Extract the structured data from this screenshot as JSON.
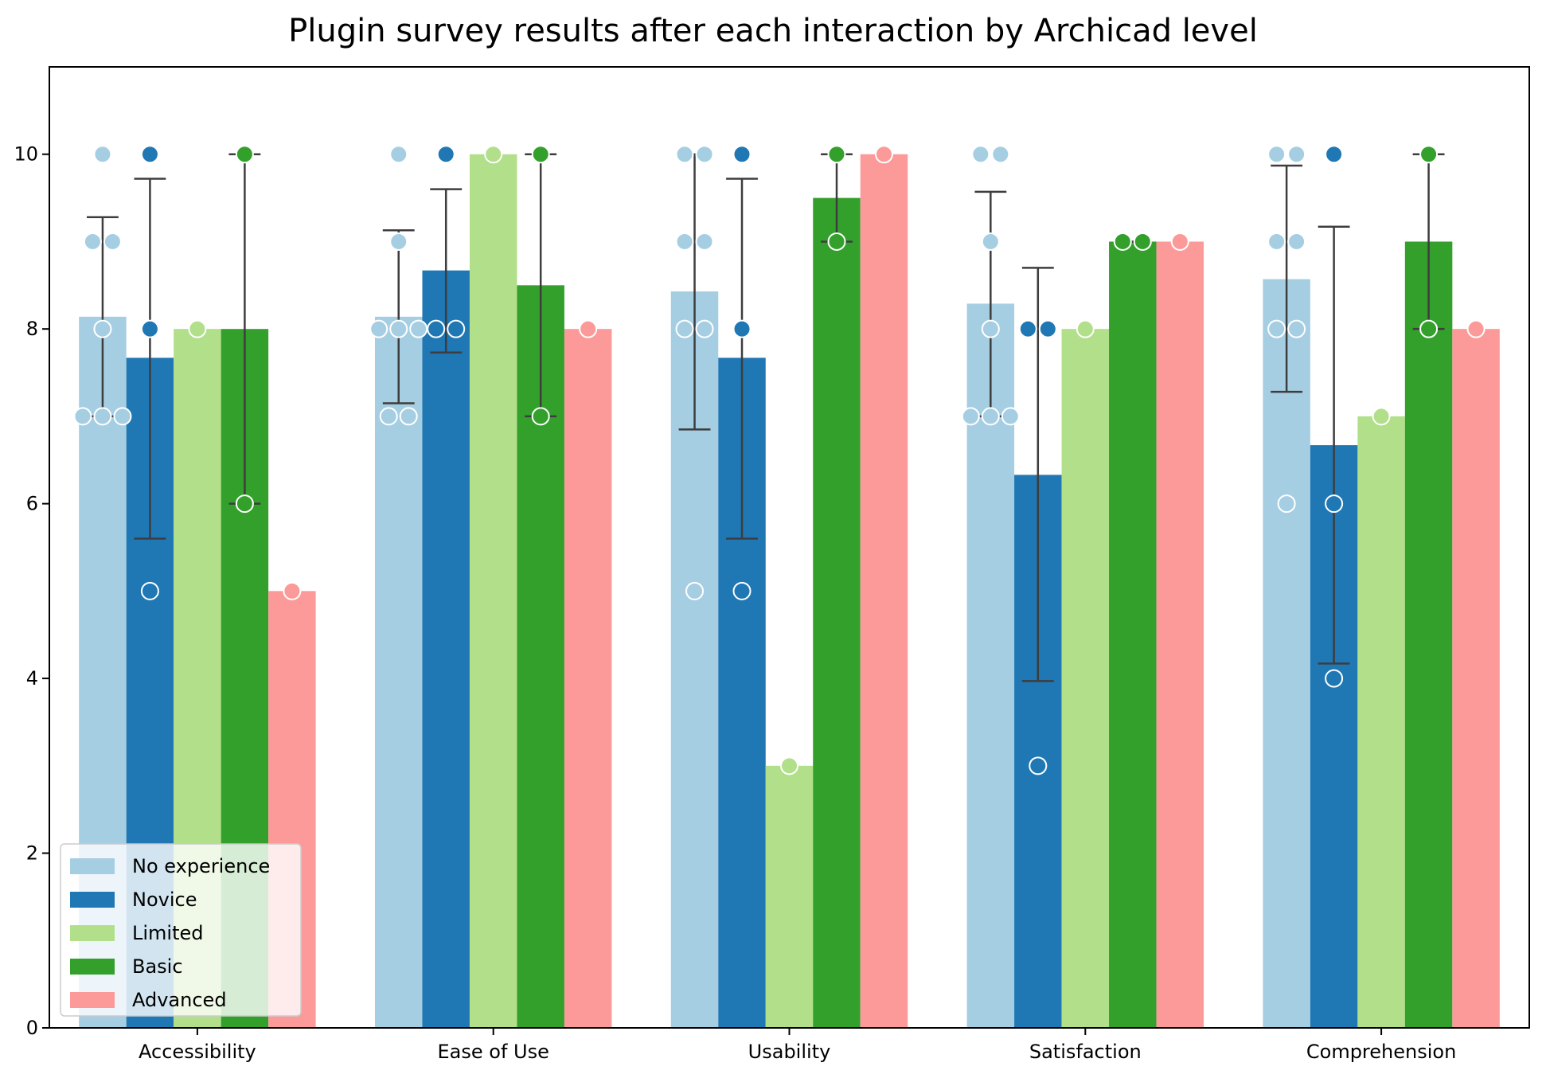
{
  "chart_data": {
    "type": "bar",
    "title": "Plugin survey results after each interaction by Archicad level",
    "xlabel": "",
    "ylabel": "",
    "ylim": [
      0,
      11
    ],
    "yticks": [
      0,
      2,
      4,
      6,
      8,
      10
    ],
    "grid": false,
    "legend_position": "bottom-left",
    "categories": [
      "Accessibility",
      "Ease of Use",
      "Usability",
      "Satisfaction",
      "Comprehension"
    ],
    "series": [
      {
        "name": "No experience",
        "color": "#a6cee3",
        "values": [
          8.14,
          8.14,
          8.43,
          8.29,
          8.57
        ],
        "ci": [
          [
            7.0,
            9.28
          ],
          [
            7.15,
            9.13
          ],
          [
            6.85,
            10.0
          ],
          [
            7.0,
            9.57
          ],
          [
            7.28,
            9.87
          ]
        ],
        "points": [
          [
            7,
            7,
            7,
            8,
            9,
            9,
            10
          ],
          [
            7,
            7,
            8,
            8,
            8,
            9,
            10
          ],
          [
            5,
            8,
            8,
            9,
            9,
            10,
            10
          ],
          [
            7,
            7,
            7,
            8,
            9,
            10,
            10
          ],
          [
            6,
            8,
            8,
            9,
            9,
            10,
            10
          ]
        ]
      },
      {
        "name": "Novice",
        "color": "#1f78b4",
        "values": [
          7.67,
          8.67,
          7.67,
          6.33,
          6.67
        ],
        "ci": [
          [
            5.6,
            9.72
          ],
          [
            7.73,
            9.6
          ],
          [
            5.6,
            9.72
          ],
          [
            3.97,
            8.7
          ],
          [
            4.17,
            9.17
          ]
        ],
        "points": [
          [
            5,
            8,
            10
          ],
          [
            8,
            8,
            10
          ],
          [
            5,
            8,
            10
          ],
          [
            3,
            8,
            8
          ],
          [
            4,
            6,
            10
          ]
        ]
      },
      {
        "name": "Limited",
        "color": "#b2df8a",
        "values": [
          8.0,
          10.0,
          3.0,
          8.0,
          7.0
        ],
        "ci": [
          null,
          null,
          null,
          null,
          null
        ],
        "points": [
          [
            8
          ],
          [
            10
          ],
          [
            3
          ],
          [
            8
          ],
          [
            7
          ]
        ]
      },
      {
        "name": "Basic",
        "color": "#33a02c",
        "values": [
          8.0,
          8.5,
          9.5,
          9.0,
          9.0
        ],
        "ci": [
          [
            6.0,
            10.0
          ],
          [
            7.0,
            10.0
          ],
          [
            9.0,
            10.0
          ],
          [
            9.0,
            9.0
          ],
          [
            8.0,
            10.0
          ]
        ],
        "points": [
          [
            6,
            10
          ],
          [
            7,
            10
          ],
          [
            9,
            10
          ],
          [
            9,
            9
          ],
          [
            8,
            10
          ]
        ]
      },
      {
        "name": "Advanced",
        "color": "#fb9a99",
        "values": [
          5.0,
          8.0,
          10.0,
          9.0,
          8.0
        ],
        "ci": [
          null,
          null,
          null,
          null,
          null
        ],
        "points": [
          [
            5
          ],
          [
            8
          ],
          [
            10
          ],
          [
            9
          ],
          [
            8
          ]
        ]
      }
    ]
  }
}
